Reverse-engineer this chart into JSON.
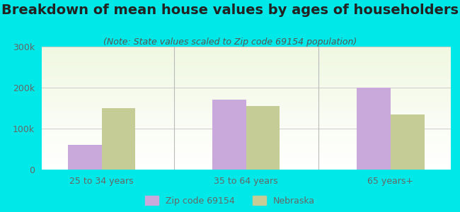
{
  "title": "Breakdown of mean house values by ages of householders",
  "subtitle": "(Note: State values scaled to Zip code 69154 population)",
  "categories": [
    "25 to 34 years",
    "35 to 64 years",
    "65 years+"
  ],
  "zip_values": [
    60000,
    170000,
    200000
  ],
  "state_values": [
    150000,
    155000,
    135000
  ],
  "zip_color": "#c9a8dc",
  "state_color": "#c5cc96",
  "background_outer": "#00e8e8",
  "ylim": [
    0,
    300000
  ],
  "yticks": [
    0,
    100000,
    200000,
    300000
  ],
  "ytick_labels": [
    "0",
    "100k",
    "200k",
    "300k"
  ],
  "legend_zip": "Zip code 69154",
  "legend_state": "Nebraska",
  "bar_width": 0.28,
  "title_fontsize": 14,
  "subtitle_fontsize": 9,
  "tick_fontsize": 9,
  "legend_fontsize": 9,
  "title_color": "#222222",
  "subtitle_color": "#555555",
  "tick_color": "#666666",
  "grid_color": "#cccccc",
  "divider_color": "#bbbbbb"
}
